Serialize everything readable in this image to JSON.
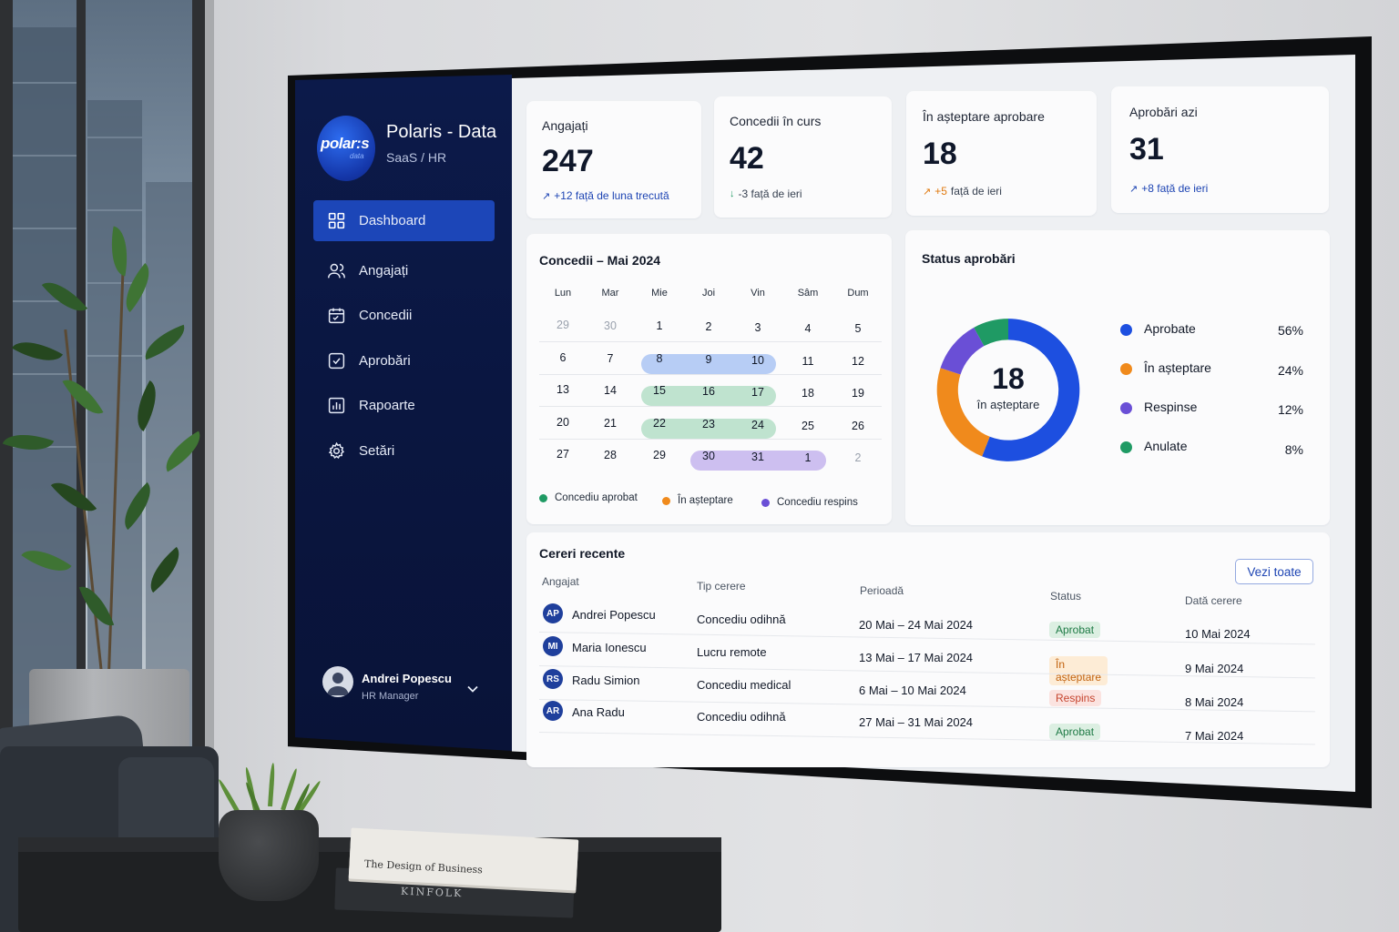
{
  "brand": {
    "logo_word": "polar:s",
    "logo_sub": "data",
    "name": "Polaris - Data",
    "subtitle": "SaaS / HR"
  },
  "nav": [
    {
      "label": "Dashboard",
      "icon": "grid-icon",
      "active": true
    },
    {
      "label": "Angajați",
      "icon": "users-icon"
    },
    {
      "label": "Concedii",
      "icon": "calendar-icon"
    },
    {
      "label": "Aprobări",
      "icon": "checkbox-icon"
    },
    {
      "label": "Rapoarte",
      "icon": "bar-chart-icon"
    },
    {
      "label": "Setări",
      "icon": "gear-icon"
    }
  ],
  "user": {
    "name": "Andrei Popescu",
    "role": "HR Manager"
  },
  "stats": [
    {
      "label": "Angajați",
      "value": "247",
      "delta": "+12 față de luna trecută",
      "trend": "up",
      "color": "#1d44b3"
    },
    {
      "label": "Concedii în curs",
      "value": "42",
      "delta": "-3 față de ieri",
      "trend": "down",
      "color": "#374151"
    },
    {
      "label": "În așteptare aprobare",
      "value": "18",
      "delta_num": "+5",
      "delta": "față de ieri",
      "trend": "up",
      "color": "#e07a10"
    },
    {
      "label": "Aprobări azi",
      "value": "31",
      "delta": "+8 față de ieri",
      "trend": "up",
      "color": "#1d44b3"
    }
  ],
  "calendar": {
    "title": "Concedii – Mai 2024",
    "weekdays": [
      "Lun",
      "Mar",
      "Mie",
      "Joi",
      "Vin",
      "Sâm",
      "Dum"
    ],
    "weeks": [
      [
        "29",
        "30",
        "1",
        "2",
        "3",
        "4",
        "5"
      ],
      [
        "6",
        "7",
        "8",
        "9",
        "10",
        "11",
        "12"
      ],
      [
        "13",
        "14",
        "15",
        "16",
        "17",
        "18",
        "19"
      ],
      [
        "20",
        "21",
        "22",
        "23",
        "24",
        "25",
        "26"
      ],
      [
        "27",
        "28",
        "29",
        "30",
        "31",
        "1",
        "2"
      ]
    ],
    "legend": [
      {
        "label": "Concediu aprobat",
        "color": "#1f9a64"
      },
      {
        "label": "În așteptare",
        "color": "#f08a1c"
      },
      {
        "label": "Concediu respins",
        "color": "#6a4fd6"
      }
    ]
  },
  "approvals": {
    "title": "Status aprobări",
    "center_value": "18",
    "center_label": "în așteptare",
    "items": [
      {
        "name": "Aprobate",
        "percent": 56,
        "label": "56%",
        "color": "#1d4fe0"
      },
      {
        "name": "În așteptare",
        "percent": 24,
        "label": "24%",
        "color": "#f08a1c"
      },
      {
        "name": "Respinse",
        "percent": 12,
        "label": "12%",
        "color": "#6a4fd6"
      },
      {
        "name": "Anulate",
        "percent": 8,
        "label": "8%",
        "color": "#1f9a64"
      }
    ]
  },
  "requests": {
    "title": "Cereri recente",
    "view_all": "Vezi toate",
    "columns": [
      "Angajat",
      "Tip cerere",
      "Perioadă",
      "Status",
      "Dată cerere"
    ],
    "rows": [
      {
        "initials": "AP",
        "name": "Andrei Popescu",
        "type": "Concediu odihnă",
        "period": "20 Mai – 24 Mai 2024",
        "status": "Aprobat",
        "kind": "ok",
        "date": "10 Mai 2024"
      },
      {
        "initials": "MI",
        "name": "Maria Ionescu",
        "type": "Lucru remote",
        "period": "13 Mai – 17 Mai 2024",
        "status": "În așteptare",
        "kind": "wait",
        "date": "9 Mai 2024"
      },
      {
        "initials": "RS",
        "name": "Radu Simion",
        "type": "Concediu medical",
        "period": "6 Mai – 10 Mai 2024",
        "status": "Respins",
        "kind": "no",
        "date": "8 Mai 2024"
      },
      {
        "initials": "AR",
        "name": "Ana Radu",
        "type": "Concediu odihnă",
        "period": "27 Mai – 31 Mai 2024",
        "status": "Aprobat",
        "kind": "ok",
        "date": "7 Mai 2024"
      }
    ]
  },
  "books": {
    "top": "The Design of Business",
    "bottom": "KINFOLK"
  }
}
